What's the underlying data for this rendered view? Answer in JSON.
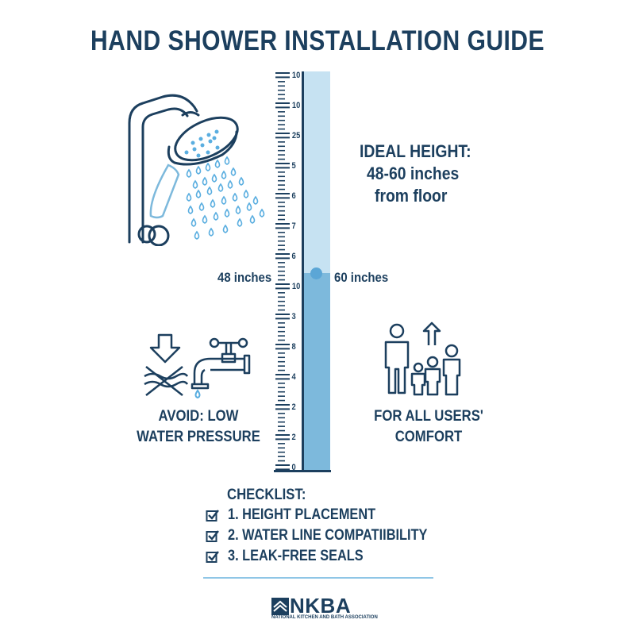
{
  "title": "HAND SHOWER INSTALLATION GUIDE",
  "ideal": {
    "heading": "IDEAL HEIGHT:",
    "range": "48-60 inches",
    "suffix": "from floor"
  },
  "gauge": {
    "labels": [
      "10",
      "10",
      "25",
      "5",
      "6",
      "7",
      "6",
      "10",
      "3",
      "8",
      "4",
      "2",
      "2",
      "0"
    ],
    "left_marker": "48 inches",
    "right_marker": "60 inches",
    "fill_level_percent": 49.5,
    "colors": {
      "upper": "#c6e2f2",
      "lower": "#7db9dc",
      "ink": "#1c3f5e"
    }
  },
  "avoid": {
    "line1": "AVOID: LOW",
    "line2": "WATER PRESSURE"
  },
  "users": {
    "line1": "FOR ALL USERS'",
    "line2": "COMFORT"
  },
  "checklist": {
    "heading": "CHECKLIST:",
    "items": [
      "1. HEIGHT PLACEMENT",
      "2. WATER LINE COMPATIIBILITY",
      "3. LEAK-FREE SEALS"
    ]
  },
  "footer": {
    "logo": "NKBA",
    "tagline": "NATIONAL KITCHEN AND BATH ASSOCIATION"
  },
  "icons": [
    "shower-head-icon",
    "water-drops-icon",
    "low-pressure-icon",
    "faucet-icon",
    "family-icon",
    "arrow-up-icon",
    "checkbox-icon",
    "nkba-logo-icon"
  ]
}
